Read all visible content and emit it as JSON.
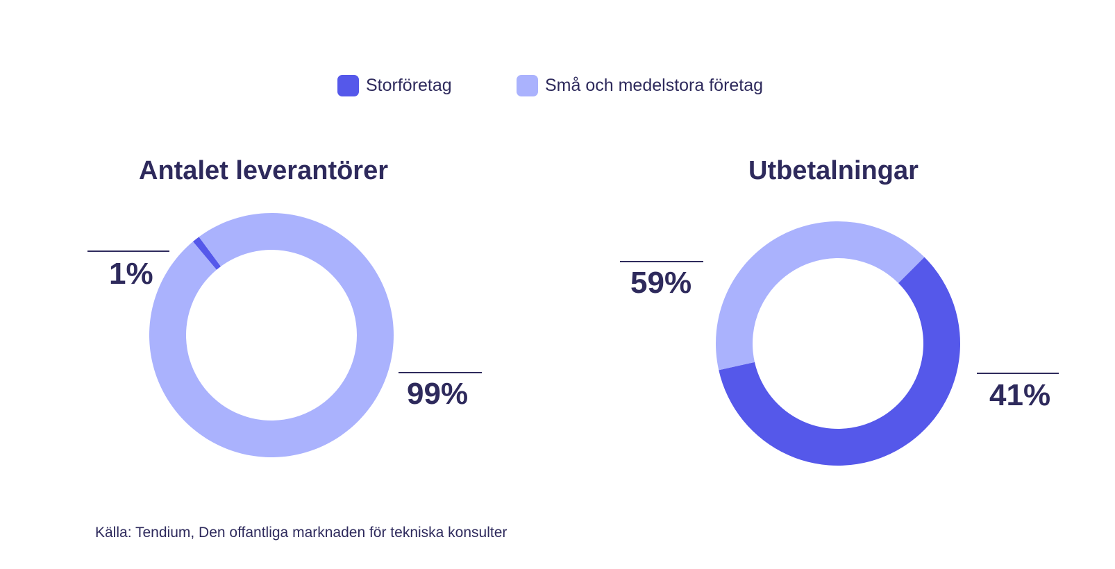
{
  "colors": {
    "large": "#5558ea",
    "small": "#aab2fd",
    "text": "#2e2a5c"
  },
  "legend": [
    {
      "label": "Storföretag",
      "color": "#5558ea"
    },
    {
      "label": "Små och medelstora företag",
      "color": "#aab2fd"
    }
  ],
  "chart_data": [
    {
      "type": "pie",
      "variant": "donut",
      "title": "Antalet leverantörer",
      "series": [
        {
          "name": "Storföretag",
          "value": 1,
          "label": "1%"
        },
        {
          "name": "Små och medelstora företag",
          "value": 99,
          "label": "99%"
        }
      ]
    },
    {
      "type": "pie",
      "variant": "donut",
      "title": "Utbetalningar",
      "series": [
        {
          "name": "Storföretag",
          "value": 59,
          "label": "59%"
        },
        {
          "name": "Små och medelstora företag",
          "value": 41,
          "label": "41%"
        }
      ]
    }
  ],
  "source": "Källa: Tendium, Den offantliga marknaden för tekniska konsulter"
}
